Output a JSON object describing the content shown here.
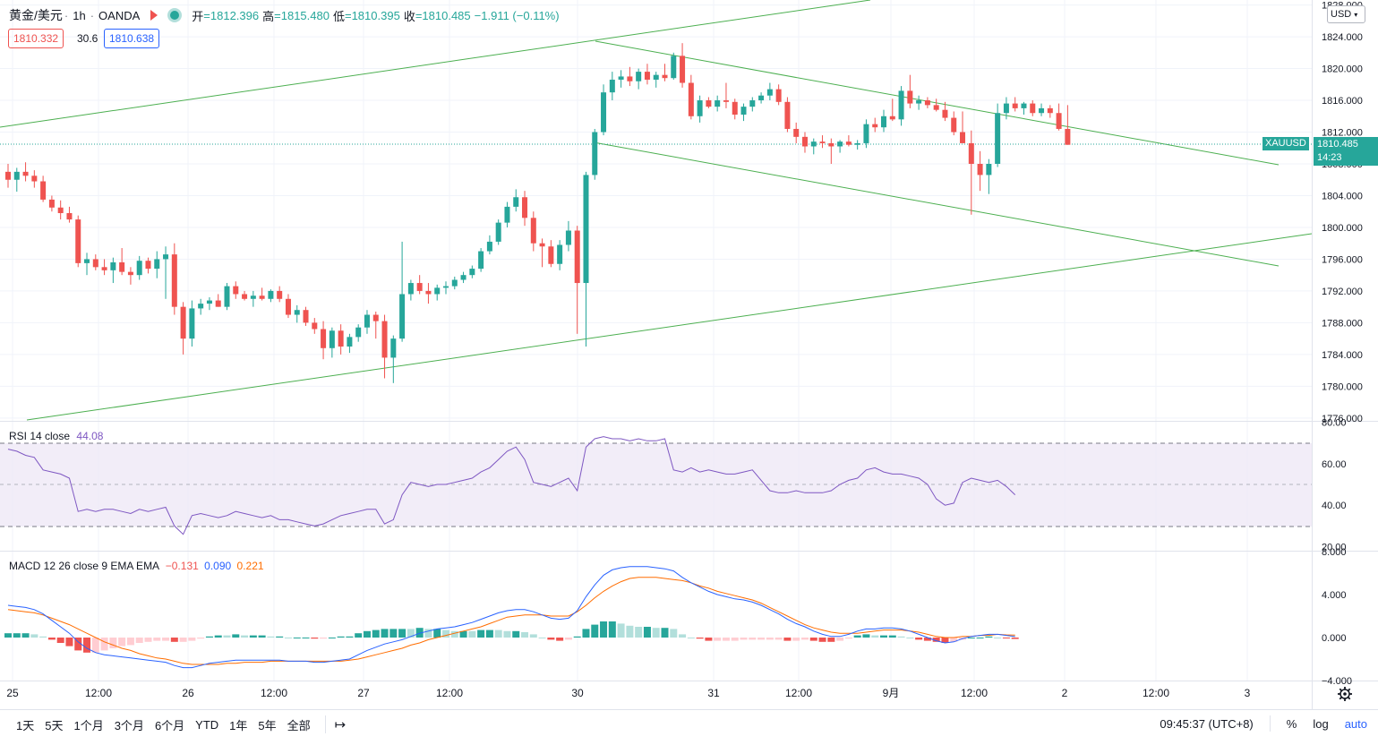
{
  "legend": {
    "symbol": "黄金/美元",
    "interval": "1h",
    "broker": "OANDA",
    "open_label": "开",
    "open": "=1812.396",
    "high_label": "高",
    "high": "=1815.480",
    "low_label": "低",
    "low": "=1810.395",
    "close_label": "收",
    "close": "=1810.485",
    "change": "−1.911 (−0.11%)"
  },
  "quote": {
    "bid": "1810.332",
    "spread": "30.6",
    "ask": "1810.638"
  },
  "currency_select": "USD",
  "current": {
    "symbol_tag": "XAUUSD",
    "price": "1810.485",
    "countdown": "14:23"
  },
  "price_axis": [
    "1828.000",
    "1824.000",
    "1820.000",
    "1816.000",
    "1812.000",
    "1808.000",
    "1804.000",
    "1800.000",
    "1796.000",
    "1792.000",
    "1788.000",
    "1784.000",
    "1780.000",
    "1776.000"
  ],
  "rsi": {
    "label": "RSI 14 close",
    "value": "44.08",
    "axis": [
      "80.00",
      "60.00",
      "40.00",
      "20.00"
    ]
  },
  "macd": {
    "label": "MACD 12 26 close 9 EMA EMA",
    "hist": "−0.131",
    "macd": "0.090",
    "signal": "0.221",
    "axis": [
      "8.000",
      "4.000",
      "0.000",
      "−4.000"
    ]
  },
  "time_axis": [
    "25",
    "12:00",
    "26",
    "12:00",
    "27",
    "12:00",
    "30",
    "31",
    "12:00",
    "9月",
    "12:00",
    "2",
    "12:00",
    "3"
  ],
  "timeframes": [
    "1天",
    "5天",
    "1个月",
    "3个月",
    "6个月",
    "YTD",
    "1年",
    "5年",
    "全部"
  ],
  "goto_icon": "goto-date-icon",
  "clock": "09:45:37 (UTC+8)",
  "right_tools": {
    "percent": "%",
    "log": "log",
    "auto": "auto"
  },
  "colors": {
    "up": "#26a69a",
    "down": "#ef5350",
    "trend": "#4caf50",
    "rsi": "#7e57c2",
    "macd": "#2962ff",
    "signal": "#ff6d00"
  },
  "chart_data": {
    "type": "candlestick",
    "title": "黄金/美元 · 1h · OANDA",
    "ylim": [
      1776,
      1828
    ],
    "candles": [
      [
        1807.0,
        1808.0,
        1805.0,
        1806.0
      ],
      [
        1806.0,
        1807.5,
        1804.5,
        1807.0
      ],
      [
        1807.0,
        1808.2,
        1805.8,
        1806.5
      ],
      [
        1806.5,
        1807.2,
        1805.0,
        1805.8
      ],
      [
        1805.8,
        1806.5,
        1803.2,
        1803.5
      ],
      [
        1803.5,
        1804.0,
        1802.0,
        1802.5
      ],
      [
        1802.5,
        1803.4,
        1801.0,
        1801.8
      ],
      [
        1801.8,
        1802.6,
        1800.6,
        1801.0
      ],
      [
        1801.0,
        1801.5,
        1795.0,
        1795.5
      ],
      [
        1795.5,
        1796.8,
        1794.0,
        1796.0
      ],
      [
        1796.0,
        1796.6,
        1794.6,
        1795.0
      ],
      [
        1795.0,
        1796.0,
        1794.0,
        1794.6
      ],
      [
        1794.6,
        1796.2,
        1793.0,
        1795.6
      ],
      [
        1795.6,
        1797.4,
        1794.0,
        1794.4
      ],
      [
        1794.4,
        1795.0,
        1792.8,
        1794.0
      ],
      [
        1794.0,
        1796.4,
        1793.4,
        1795.8
      ],
      [
        1795.8,
        1796.2,
        1794.2,
        1794.8
      ],
      [
        1794.8,
        1797.0,
        1793.6,
        1796.0
      ],
      [
        1796.0,
        1797.6,
        1791.0,
        1796.6
      ],
      [
        1796.6,
        1798.0,
        1789.0,
        1790.0
      ],
      [
        1790.0,
        1790.6,
        1784.0,
        1786.0
      ],
      [
        1786.0,
        1790.8,
        1785.0,
        1789.8
      ],
      [
        1789.8,
        1791.0,
        1789.0,
        1790.4
      ],
      [
        1790.4,
        1791.2,
        1789.6,
        1790.8
      ],
      [
        1790.8,
        1791.6,
        1790.0,
        1790.0
      ],
      [
        1790.0,
        1793.0,
        1789.6,
        1792.6
      ],
      [
        1792.6,
        1793.2,
        1791.0,
        1791.6
      ],
      [
        1791.6,
        1792.0,
        1790.8,
        1791.0
      ],
      [
        1791.0,
        1792.0,
        1790.0,
        1791.4
      ],
      [
        1791.4,
        1792.4,
        1790.8,
        1791.0
      ],
      [
        1791.0,
        1792.2,
        1790.6,
        1792.0
      ],
      [
        1792.0,
        1792.6,
        1790.6,
        1791.0
      ],
      [
        1791.0,
        1791.6,
        1788.6,
        1789.0
      ],
      [
        1789.0,
        1790.2,
        1788.0,
        1789.6
      ],
      [
        1789.6,
        1790.0,
        1787.6,
        1788.0
      ],
      [
        1788.0,
        1788.6,
        1786.6,
        1787.2
      ],
      [
        1787.2,
        1788.2,
        1783.4,
        1784.8
      ],
      [
        1784.8,
        1787.4,
        1783.6,
        1787.0
      ],
      [
        1787.0,
        1787.8,
        1784.0,
        1785.0
      ],
      [
        1785.0,
        1786.6,
        1784.2,
        1786.2
      ],
      [
        1786.2,
        1787.8,
        1785.6,
        1787.4
      ],
      [
        1787.4,
        1789.6,
        1786.6,
        1789.0
      ],
      [
        1789.0,
        1789.4,
        1786.0,
        1788.2
      ],
      [
        1788.2,
        1789.0,
        1781.0,
        1783.6
      ],
      [
        1783.6,
        1786.4,
        1780.4,
        1786.0
      ],
      [
        1786.0,
        1798.2,
        1785.6,
        1791.6
      ],
      [
        1791.6,
        1793.4,
        1790.8,
        1793.0
      ],
      [
        1793.0,
        1794.0,
        1791.6,
        1792.0
      ],
      [
        1792.0,
        1793.0,
        1790.4,
        1791.6
      ],
      [
        1791.6,
        1792.8,
        1790.8,
        1792.4
      ],
      [
        1792.4,
        1793.2,
        1791.6,
        1792.6
      ],
      [
        1792.6,
        1793.8,
        1792.2,
        1793.4
      ],
      [
        1793.4,
        1794.4,
        1793.0,
        1794.0
      ],
      [
        1794.0,
        1795.2,
        1793.6,
        1794.8
      ],
      [
        1794.8,
        1797.4,
        1794.4,
        1797.0
      ],
      [
        1797.0,
        1799.0,
        1796.6,
        1798.2
      ],
      [
        1798.2,
        1801.0,
        1797.8,
        1800.6
      ],
      [
        1800.6,
        1803.2,
        1800.0,
        1802.6
      ],
      [
        1802.6,
        1804.8,
        1802.0,
        1803.8
      ],
      [
        1803.8,
        1804.6,
        1800.2,
        1801.2
      ],
      [
        1801.2,
        1802.0,
        1797.0,
        1798.0
      ],
      [
        1798.0,
        1798.6,
        1795.0,
        1797.6
      ],
      [
        1797.6,
        1798.4,
        1795.0,
        1795.4
      ],
      [
        1795.4,
        1798.4,
        1794.6,
        1797.8
      ],
      [
        1797.8,
        1800.8,
        1797.0,
        1799.6
      ],
      [
        1799.6,
        1800.2,
        1786.6,
        1793.0
      ],
      [
        1793.0,
        1807.0,
        1785.0,
        1806.6
      ],
      [
        1806.6,
        1812.4,
        1806.0,
        1812.0
      ],
      [
        1812.0,
        1818.0,
        1811.6,
        1817.0
      ],
      [
        1817.0,
        1819.6,
        1816.0,
        1818.6
      ],
      [
        1818.6,
        1819.8,
        1817.6,
        1819.0
      ],
      [
        1819.0,
        1820.2,
        1817.8,
        1818.4
      ],
      [
        1818.4,
        1820.0,
        1817.4,
        1819.6
      ],
      [
        1819.6,
        1820.6,
        1818.0,
        1818.6
      ],
      [
        1818.6,
        1819.6,
        1817.6,
        1819.2
      ],
      [
        1819.2,
        1820.6,
        1818.4,
        1818.8
      ],
      [
        1818.8,
        1822.0,
        1818.6,
        1821.6
      ],
      [
        1821.6,
        1823.2,
        1817.6,
        1818.2
      ],
      [
        1818.2,
        1819.2,
        1813.6,
        1814.0
      ],
      [
        1814.0,
        1816.6,
        1813.2,
        1816.0
      ],
      [
        1816.0,
        1816.4,
        1815.0,
        1815.2
      ],
      [
        1815.2,
        1816.6,
        1814.6,
        1816.0
      ],
      [
        1816.0,
        1818.2,
        1815.0,
        1815.8
      ],
      [
        1815.8,
        1816.2,
        1813.6,
        1814.2
      ],
      [
        1814.2,
        1815.6,
        1813.4,
        1815.2
      ],
      [
        1815.2,
        1816.4,
        1814.6,
        1816.0
      ],
      [
        1816.0,
        1817.0,
        1815.6,
        1816.6
      ],
      [
        1816.6,
        1818.2,
        1816.0,
        1817.4
      ],
      [
        1817.4,
        1818.0,
        1815.4,
        1815.8
      ],
      [
        1815.8,
        1816.4,
        1812.0,
        1812.4
      ],
      [
        1812.4,
        1813.2,
        1810.6,
        1811.4
      ],
      [
        1811.4,
        1812.0,
        1809.4,
        1810.2
      ],
      [
        1810.2,
        1811.2,
        1809.2,
        1810.8
      ],
      [
        1810.8,
        1811.6,
        1810.0,
        1810.6
      ],
      [
        1810.6,
        1811.2,
        1808.0,
        1810.2
      ],
      [
        1810.2,
        1811.0,
        1809.4,
        1810.8
      ],
      [
        1810.8,
        1811.6,
        1810.2,
        1810.4
      ],
      [
        1810.4,
        1811.0,
        1809.8,
        1810.6
      ],
      [
        1810.6,
        1813.6,
        1810.0,
        1813.0
      ],
      [
        1813.0,
        1813.8,
        1812.0,
        1812.6
      ],
      [
        1812.6,
        1814.8,
        1812.0,
        1814.0
      ],
      [
        1814.0,
        1816.2,
        1813.4,
        1813.6
      ],
      [
        1813.6,
        1817.8,
        1812.8,
        1817.2
      ],
      [
        1817.2,
        1819.2,
        1815.0,
        1815.6
      ],
      [
        1815.6,
        1816.6,
        1814.8,
        1816.0
      ],
      [
        1816.0,
        1816.4,
        1815.0,
        1815.4
      ],
      [
        1815.4,
        1816.2,
        1814.6,
        1814.8
      ],
      [
        1814.8,
        1815.8,
        1813.4,
        1813.8
      ],
      [
        1813.8,
        1814.6,
        1811.6,
        1812.0
      ],
      [
        1812.0,
        1814.6,
        1811.0,
        1810.6
      ],
      [
        1810.6,
        1812.2,
        1801.6,
        1808.0
      ],
      [
        1808.0,
        1809.6,
        1804.6,
        1806.6
      ],
      [
        1806.6,
        1808.6,
        1804.2,
        1808.0
      ],
      [
        1808.0,
        1815.6,
        1807.6,
        1814.4
      ],
      [
        1814.4,
        1816.4,
        1813.6,
        1815.6
      ],
      [
        1815.6,
        1816.4,
        1814.6,
        1815.0
      ],
      [
        1815.0,
        1815.8,
        1814.2,
        1815.6
      ],
      [
        1815.6,
        1816.0,
        1814.0,
        1814.4
      ],
      [
        1814.4,
        1815.6,
        1814.0,
        1815.0
      ],
      [
        1815.0,
        1815.4,
        1813.8,
        1814.4
      ],
      [
        1814.4,
        1815.6,
        1812.2,
        1812.4
      ],
      [
        1812.4,
        1815.4,
        1810.4,
        1810.4
      ]
    ],
    "rsi_values": [
      67,
      66,
      64,
      63,
      57,
      56,
      55,
      53,
      37,
      38,
      37,
      38,
      38,
      37,
      36,
      38,
      37,
      38,
      39,
      30,
      26,
      35,
      36,
      35,
      34,
      35,
      37,
      36,
      35,
      34,
      35,
      33,
      33,
      32,
      31,
      30,
      31,
      33,
      35,
      36,
      37,
      38,
      38,
      31,
      33,
      45,
      51,
      50,
      49,
      50,
      50,
      51,
      52,
      53,
      56,
      58,
      62,
      66,
      68,
      62,
      51,
      50,
      49,
      51,
      53,
      47,
      68,
      72,
      73,
      72,
      72,
      71,
      72,
      71,
      71,
      72,
      57,
      56,
      58,
      56,
      57,
      56,
      55,
      55,
      56,
      57,
      52,
      47,
      46,
      46,
      47,
      46,
      46,
      46,
      47,
      50,
      52,
      53,
      57,
      58,
      56,
      55,
      55,
      54,
      53,
      50,
      43,
      40,
      41,
      51,
      53,
      52,
      51,
      52,
      49,
      45
    ],
    "macd_line": [
      3.0,
      2.9,
      2.8,
      2.6,
      2.2,
      1.6,
      1.0,
      0.4,
      -0.4,
      -1.0,
      -1.4,
      -1.6,
      -1.7,
      -1.8,
      -1.9,
      -2.0,
      -2.1,
      -2.2,
      -2.3,
      -2.6,
      -2.8,
      -2.8,
      -2.6,
      -2.4,
      -2.3,
      -2.2,
      -2.1,
      -2.1,
      -2.1,
      -2.1,
      -2.1,
      -2.1,
      -2.2,
      -2.2,
      -2.2,
      -2.3,
      -2.3,
      -2.2,
      -2.1,
      -2.0,
      -1.6,
      -1.2,
      -0.9,
      -0.6,
      -0.4,
      -0.2,
      0.1,
      0.4,
      0.6,
      0.8,
      0.9,
      1.0,
      1.2,
      1.4,
      1.7,
      2.0,
      2.3,
      2.5,
      2.6,
      2.6,
      2.4,
      2.1,
      1.8,
      1.7,
      1.8,
      2.5,
      3.8,
      4.9,
      5.8,
      6.3,
      6.5,
      6.6,
      6.6,
      6.6,
      6.5,
      6.4,
      6.2,
      5.6,
      5.1,
      4.7,
      4.3,
      4.0,
      3.8,
      3.6,
      3.5,
      3.3,
      3.0,
      2.6,
      2.2,
      1.7,
      1.3,
      1.0,
      0.6,
      0.3,
      0.1,
      0.1,
      0.3,
      0.6,
      0.8,
      0.8,
      0.9,
      0.9,
      0.8,
      0.6,
      0.3,
      0.0,
      -0.3,
      -0.5,
      -0.4,
      -0.1,
      0.1,
      0.2,
      0.3,
      0.3,
      0.2,
      0.09
    ],
    "signal_line": [
      2.6,
      2.5,
      2.4,
      2.3,
      2.1,
      1.8,
      1.5,
      1.2,
      0.8,
      0.4,
      0.0,
      -0.4,
      -0.7,
      -1.0,
      -1.2,
      -1.5,
      -1.7,
      -1.9,
      -2.0,
      -2.2,
      -2.4,
      -2.5,
      -2.5,
      -2.5,
      -2.5,
      -2.4,
      -2.4,
      -2.3,
      -2.3,
      -2.3,
      -2.2,
      -2.2,
      -2.2,
      -2.2,
      -2.2,
      -2.2,
      -2.2,
      -2.2,
      -2.2,
      -2.1,
      -2.0,
      -1.8,
      -1.6,
      -1.4,
      -1.2,
      -1.0,
      -0.7,
      -0.5,
      -0.2,
      0.0,
      0.2,
      0.4,
      0.6,
      0.8,
      1.0,
      1.3,
      1.6,
      1.9,
      2.0,
      2.1,
      2.1,
      2.1,
      2.0,
      2.0,
      2.0,
      2.4,
      3.0,
      3.7,
      4.3,
      4.8,
      5.2,
      5.5,
      5.6,
      5.6,
      5.6,
      5.5,
      5.4,
      5.3,
      5.1,
      4.8,
      4.6,
      4.3,
      4.1,
      3.9,
      3.7,
      3.5,
      3.2,
      2.8,
      2.4,
      2.0,
      1.6,
      1.2,
      0.9,
      0.7,
      0.5,
      0.4,
      0.4,
      0.4,
      0.5,
      0.6,
      0.7,
      0.7,
      0.7,
      0.6,
      0.5,
      0.3,
      0.1,
      0.0,
      0.0,
      0.1,
      0.1,
      0.2,
      0.2,
      0.3,
      0.25,
      0.221
    ]
  }
}
